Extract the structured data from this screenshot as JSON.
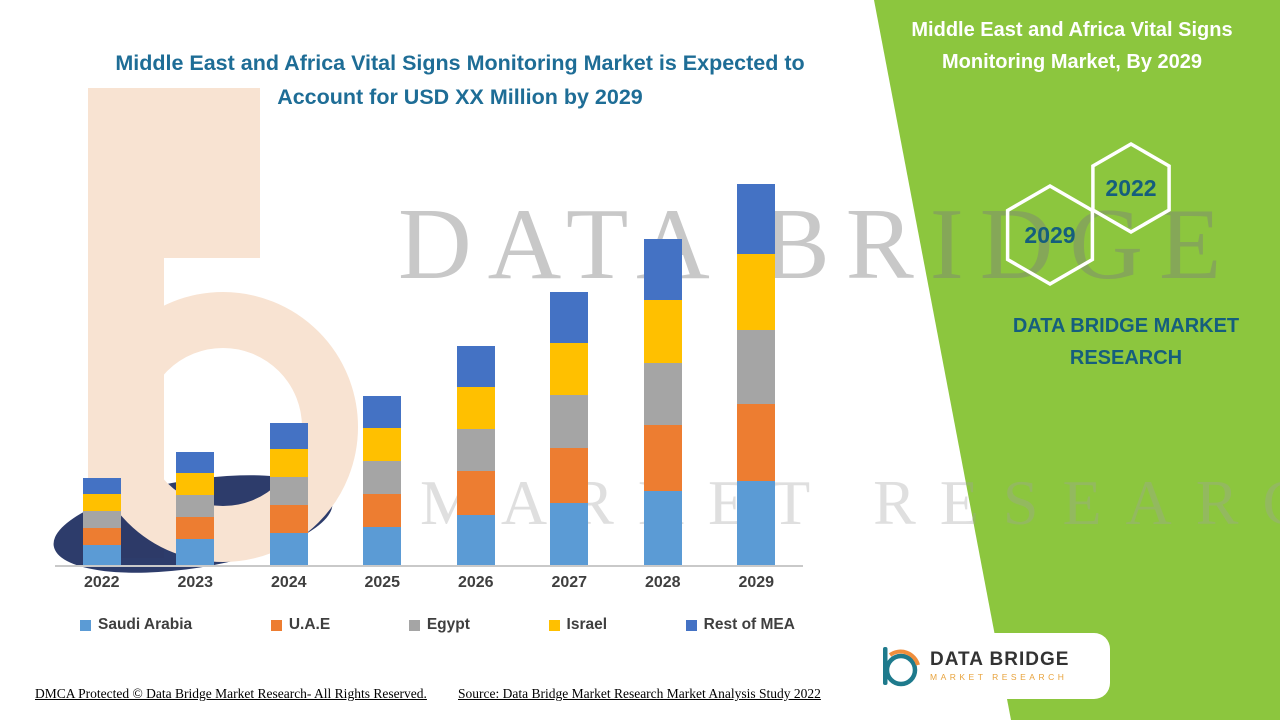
{
  "header": {
    "title_line1": "Middle East and Africa Vital Signs Monitoring Market is Expected to",
    "title_line2": "Account for USD XX Million by 2029"
  },
  "right_panel": {
    "title_line1": "Middle East and Africa Vital Signs",
    "title_line2": "Monitoring Market, By 2029",
    "hexagons": [
      {
        "label": "2029"
      },
      {
        "label": "2022"
      }
    ],
    "brand_line1": "DATA BRIDGE MARKET",
    "brand_line2": "RESEARCH",
    "panel_color": "#8CC63E",
    "accent_text_color": "#155E7D"
  },
  "watermark": {
    "line1": "DATA BRIDGE",
    "line2": "MARKET RESEARCH"
  },
  "chart_data": {
    "type": "bar",
    "stacked": true,
    "title": "Middle East and Africa Vital Signs Monitoring Market is Expected to Account for USD XX Million by 2029",
    "xlabel": "",
    "ylabel": "",
    "axis_labels_shown": false,
    "grid": false,
    "legend_position": "bottom",
    "categories": [
      "2022",
      "2023",
      "2024",
      "2025",
      "2026",
      "2027",
      "2028",
      "2029"
    ],
    "series": [
      {
        "name": "Saudi Arabia",
        "color": "#5B9BD5",
        "values": [
          20,
          26,
          32,
          38,
          50,
          62,
          74,
          84
        ]
      },
      {
        "name": "U.A.E",
        "color": "#ED7D31",
        "values": [
          17,
          22,
          28,
          33,
          44,
          55,
          66,
          77
        ]
      },
      {
        "name": "Egypt",
        "color": "#A5A5A5",
        "values": [
          17,
          22,
          28,
          33,
          42,
          53,
          63,
          75
        ]
      },
      {
        "name": "Israel",
        "color": "#FFC000",
        "values": [
          17,
          22,
          28,
          33,
          43,
          53,
          63,
          76
        ]
      },
      {
        "name": "Rest of MEA",
        "color": "#4472C4",
        "values": [
          16,
          21,
          26,
          32,
          41,
          51,
          61,
          70
        ]
      }
    ],
    "totals": [
      87,
      113,
      142,
      169,
      220,
      274,
      327,
      382
    ],
    "ylim": [
      0,
      390
    ],
    "note": "Values are relative units read from bar pixel heights; no y-axis scale shown in source image"
  },
  "footer": {
    "dmca": "DMCA Protected © Data Bridge Market Research- All Rights Reserved.",
    "source": "Source: Data Bridge Market Research Market Analysis Study 2022"
  },
  "logo_badge": {
    "line1": "DATA BRIDGE",
    "line2": "MARKET RESEARCH"
  }
}
